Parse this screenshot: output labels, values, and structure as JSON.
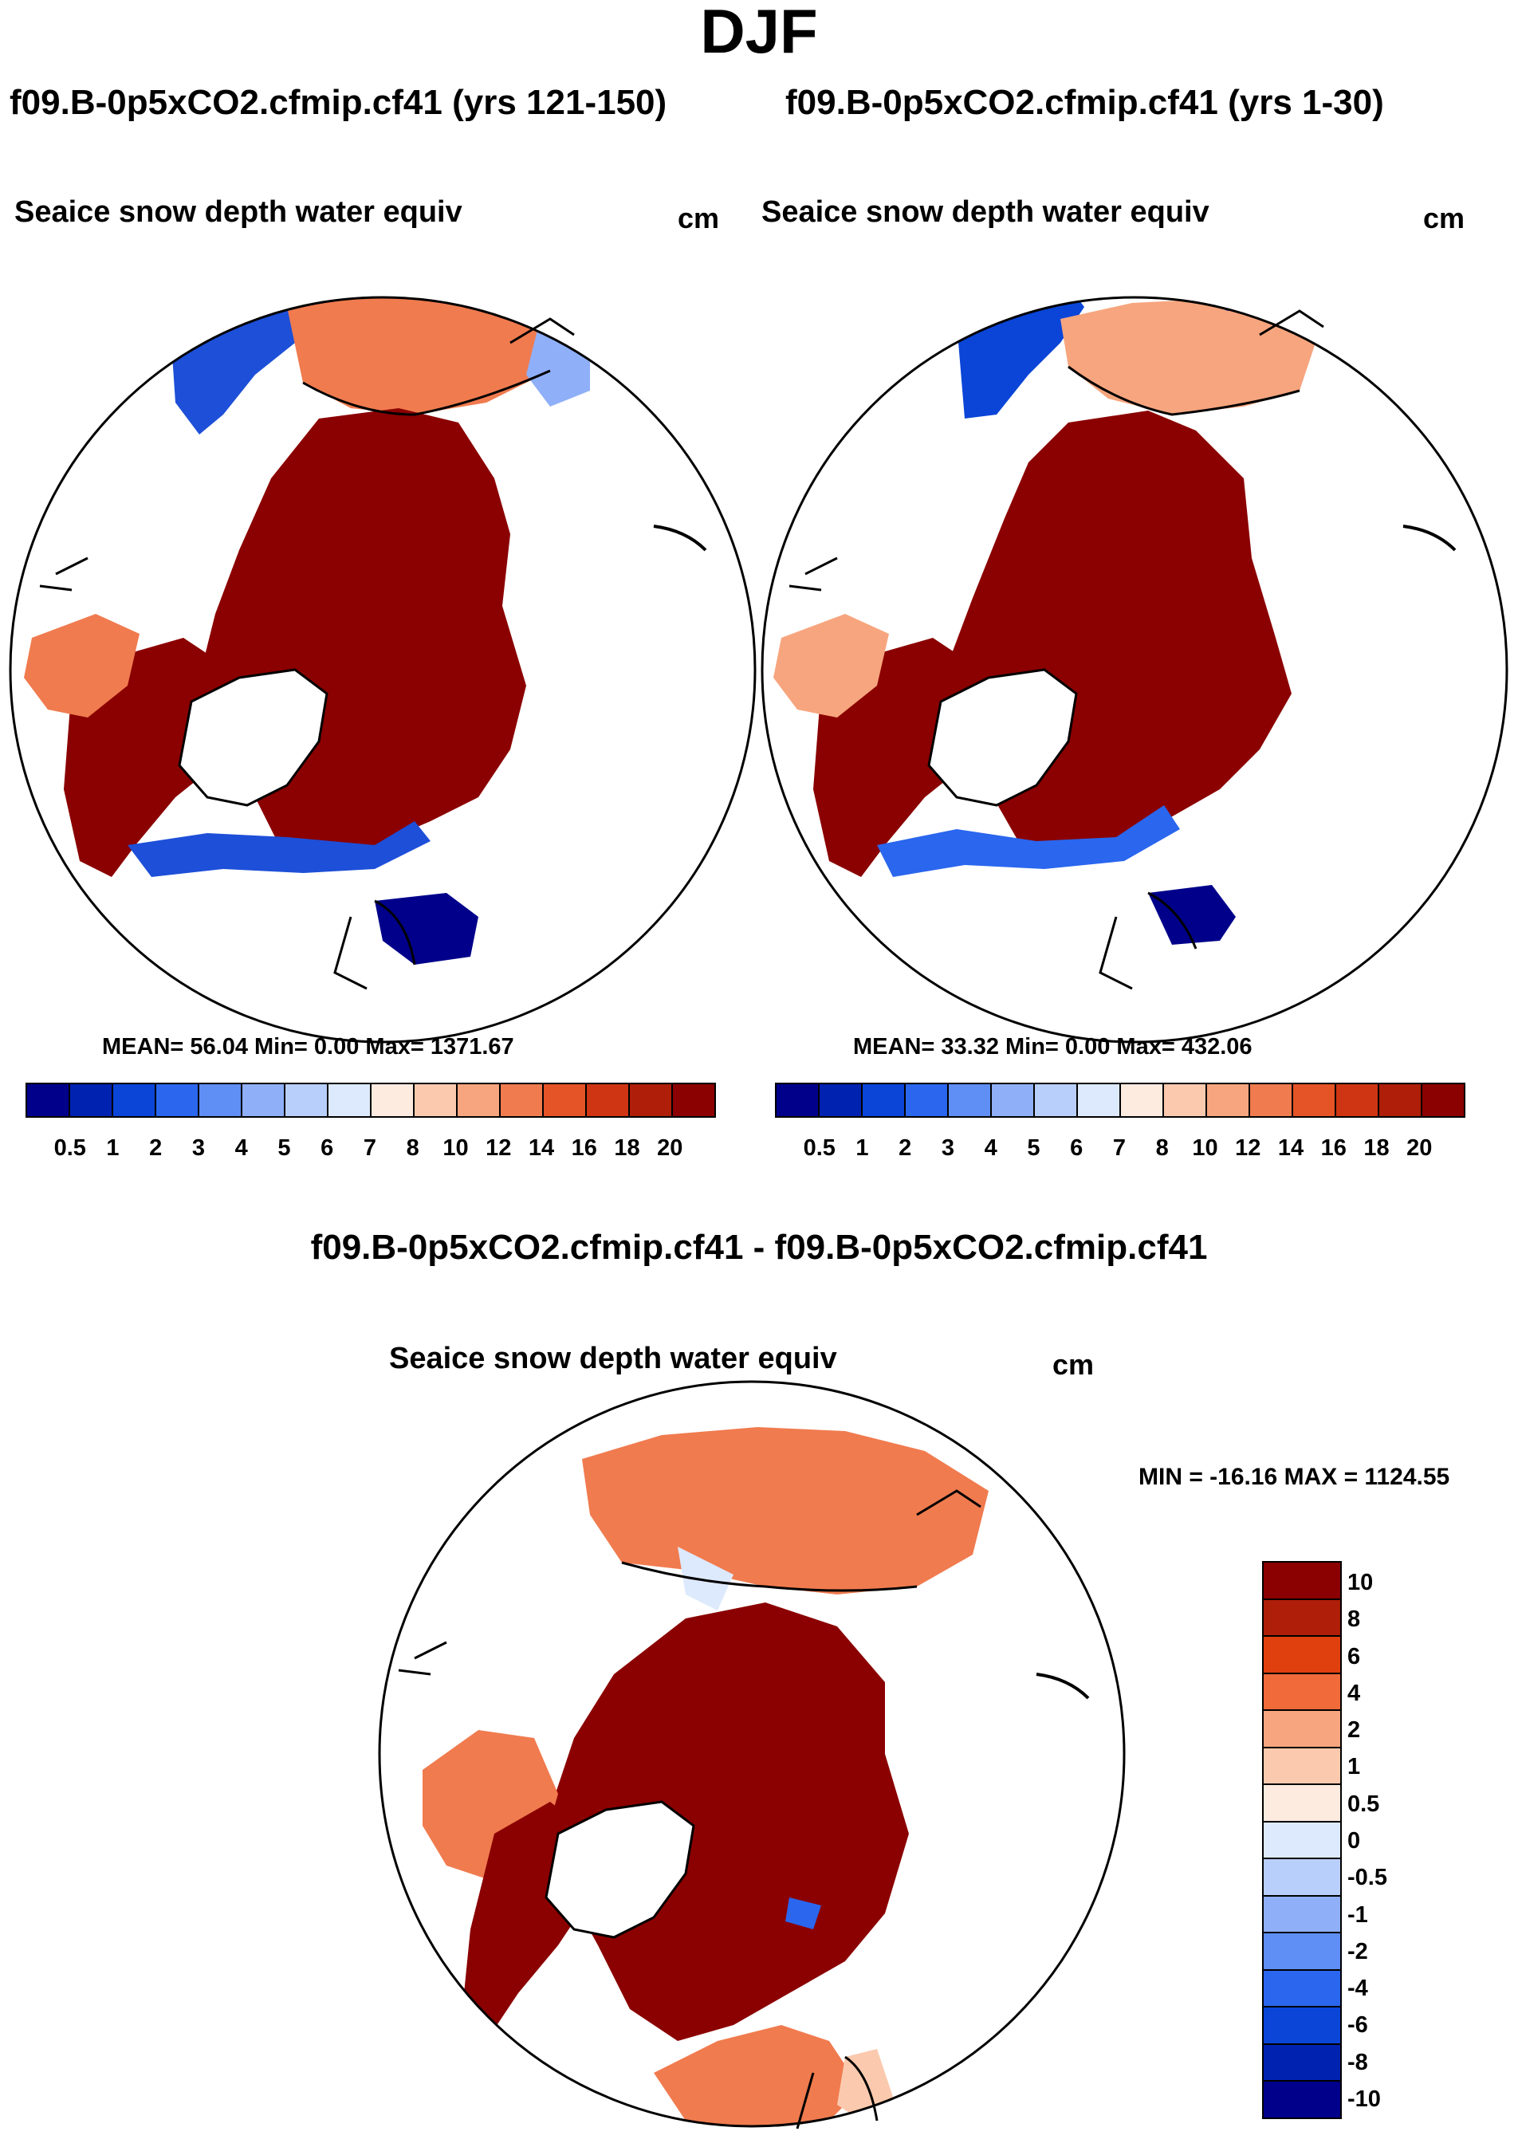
{
  "title": "DJF",
  "panels": {
    "left": {
      "case": "f09.B-0p5xCO2.cfmip.cf41 (yrs 121-150)",
      "variable": "Seaice snow depth water equiv",
      "units": "cm",
      "stats": "MEAN=  56.04  Min=    0.00  Max= 1371.67"
    },
    "right": {
      "case": "f09.B-0p5xCO2.cfmip.cf41 (yrs 1-30)",
      "variable": "Seaice snow depth water equiv",
      "units": "cm",
      "stats": "MEAN=  33.32  Min=    0.00  Max= 432.06"
    },
    "diff": {
      "case": "f09.B-0p5xCO2.cfmip.cf41 - f09.B-0p5xCO2.cfmip.cf41",
      "variable": "Seaice snow depth water equiv",
      "units": "cm",
      "stats": "MIN = -16.16 MAX = 1124.55"
    }
  },
  "colorbar_abs": {
    "colors": [
      "#00008b",
      "#0022b0",
      "#0a45d8",
      "#2a66ee",
      "#5f8ef5",
      "#8fb0f8",
      "#b9cffb",
      "#dde9fc",
      "#fdebe0",
      "#fbcaae",
      "#f7a57e",
      "#f07b4f",
      "#e55426",
      "#cf3512",
      "#ae1e08",
      "#8b0000"
    ],
    "labels": [
      "0.5",
      "1",
      "2",
      "3",
      "4",
      "5",
      "6",
      "7",
      "8",
      "10",
      "12",
      "14",
      "16",
      "18",
      "20"
    ]
  },
  "colorbar_diff": {
    "colors": [
      "#8b0000",
      "#ae1e08",
      "#e0400e",
      "#f06a3a",
      "#f7a57e",
      "#fbcaae",
      "#fdebe0",
      "#dde9fc",
      "#b9cffb",
      "#8fb0f8",
      "#5f8ef5",
      "#2a66ee",
      "#0a45d8",
      "#0022b0",
      "#00008b"
    ],
    "labels": [
      "10",
      "8",
      "6",
      "4",
      "2",
      "1",
      "0.5",
      "0",
      "-0.5",
      "-1",
      "-2",
      "-4",
      "-6",
      "-8",
      "-10"
    ]
  }
}
